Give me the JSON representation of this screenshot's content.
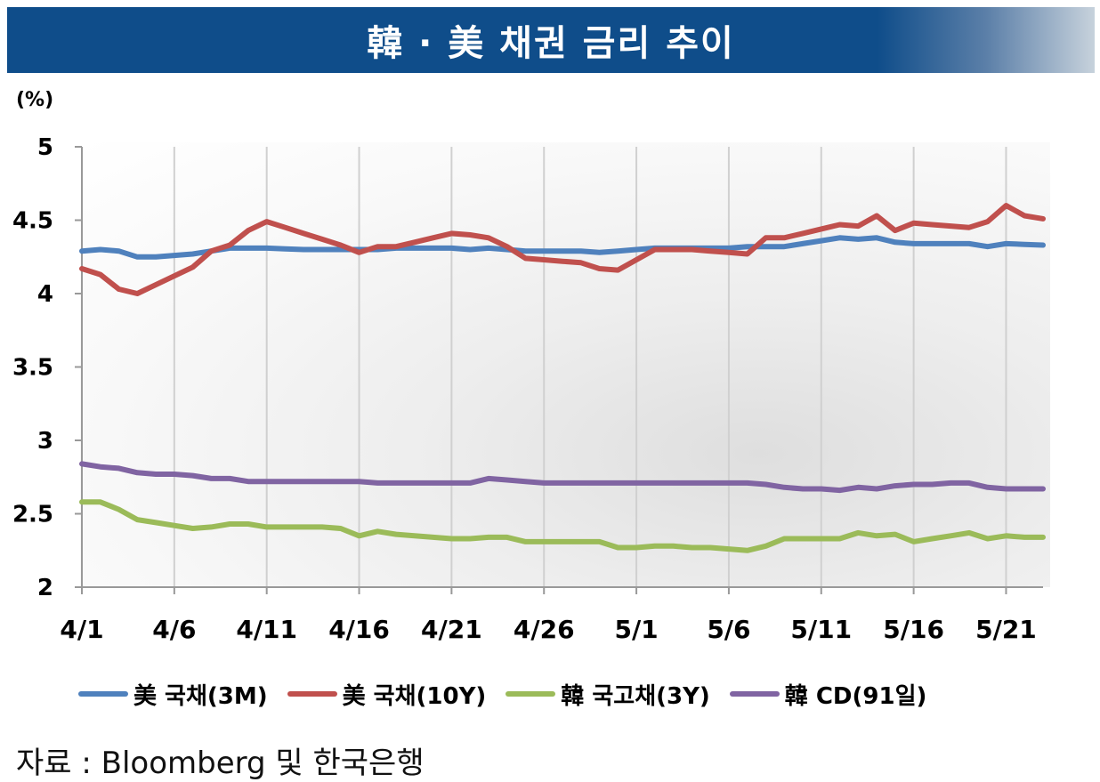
{
  "header": {
    "title": "韓 · 美 채권 금리 추이"
  },
  "unit_label": "(%)",
  "source": "자료 : Bloomberg 및 한국은행",
  "chart_data": {
    "type": "line",
    "title": "韓 · 美 채권 금리 추이",
    "ylabel": "(%)",
    "xlabel": "",
    "ylim": [
      2,
      5
    ],
    "yticks": [
      "5",
      "4.5",
      "4",
      "3.5",
      "3",
      "2.5",
      "2"
    ],
    "x_tick_labels": [
      "4/1",
      "4/6",
      "4/11",
      "4/16",
      "4/21",
      "4/26",
      "5/1",
      "5/6",
      "5/11",
      "5/16",
      "5/21"
    ],
    "x_tick_days": [
      1,
      6,
      11,
      16,
      21,
      26,
      31,
      36,
      41,
      46,
      51
    ],
    "x_range_days": [
      1,
      53
    ],
    "grid": "vertical",
    "legend_position": "bottom",
    "series": [
      {
        "name": "美 국채(3M)",
        "color": "#4f81bd",
        "x": [
          1,
          2,
          3,
          4,
          5,
          6,
          7,
          8,
          9,
          10,
          11,
          12,
          13,
          14,
          15,
          16,
          17,
          18,
          19,
          20,
          21,
          22,
          23,
          24,
          25,
          26,
          27,
          28,
          29,
          30,
          31,
          32,
          33,
          34,
          35,
          36,
          37,
          38,
          39,
          40,
          41,
          42,
          43,
          44,
          45,
          46,
          47,
          48,
          49,
          50,
          51,
          52,
          53
        ],
        "values": [
          4.29,
          4.3,
          4.29,
          4.25,
          4.25,
          4.26,
          4.27,
          4.29,
          4.31,
          4.31,
          4.31,
          4.305,
          4.3,
          4.3,
          4.3,
          4.3,
          4.3,
          4.31,
          4.31,
          4.31,
          4.31,
          4.3,
          4.31,
          4.3,
          4.29,
          4.29,
          4.29,
          4.29,
          4.28,
          4.29,
          4.3,
          4.31,
          4.31,
          4.31,
          4.31,
          4.31,
          4.32,
          4.32,
          4.32,
          4.34,
          4.36,
          4.38,
          4.37,
          4.38,
          4.35,
          4.34,
          4.34,
          4.34,
          4.34,
          4.32,
          4.34,
          4.335,
          4.33
        ]
      },
      {
        "name": "美 국채(10Y)",
        "color": "#c0504d",
        "x": [
          1,
          2,
          3,
          4,
          5,
          6,
          7,
          8,
          9,
          10,
          11,
          12,
          13,
          14,
          15,
          16,
          17,
          18,
          19,
          20,
          21,
          22,
          23,
          24,
          25,
          26,
          27,
          28,
          29,
          30,
          31,
          32,
          33,
          34,
          35,
          36,
          37,
          38,
          39,
          40,
          41,
          42,
          43,
          44,
          45,
          46,
          47,
          48,
          49,
          50,
          51,
          52,
          53
        ],
        "values": [
          4.17,
          4.13,
          4.03,
          4.0,
          4.06,
          4.12,
          4.18,
          4.29,
          4.33,
          4.43,
          4.49,
          4.45,
          4.41,
          4.37,
          4.33,
          4.28,
          4.32,
          4.32,
          4.35,
          4.38,
          4.41,
          4.4,
          4.38,
          4.32,
          4.24,
          4.23,
          4.22,
          4.21,
          4.17,
          4.16,
          4.23,
          4.3,
          4.3,
          4.3,
          4.29,
          4.28,
          4.27,
          4.38,
          4.38,
          4.41,
          4.44,
          4.47,
          4.46,
          4.53,
          4.43,
          4.48,
          4.47,
          4.46,
          4.45,
          4.49,
          4.6,
          4.53,
          4.51
        ]
      },
      {
        "name": "韓 국고채(3Y)",
        "color": "#9bbb59",
        "x": [
          1,
          2,
          3,
          4,
          5,
          6,
          7,
          8,
          9,
          10,
          11,
          12,
          13,
          14,
          15,
          16,
          17,
          18,
          19,
          20,
          21,
          22,
          23,
          24,
          25,
          26,
          27,
          28,
          29,
          30,
          31,
          32,
          33,
          34,
          35,
          36,
          37,
          38,
          39,
          40,
          41,
          42,
          43,
          44,
          45,
          46,
          47,
          48,
          49,
          50,
          51,
          52,
          53
        ],
        "values": [
          2.58,
          2.58,
          2.53,
          2.46,
          2.44,
          2.42,
          2.4,
          2.41,
          2.43,
          2.43,
          2.41,
          2.41,
          2.41,
          2.41,
          2.4,
          2.35,
          2.38,
          2.36,
          2.35,
          2.34,
          2.33,
          2.33,
          2.34,
          2.34,
          2.31,
          2.31,
          2.31,
          2.31,
          2.31,
          2.27,
          2.27,
          2.28,
          2.28,
          2.27,
          2.27,
          2.26,
          2.25,
          2.28,
          2.33,
          2.33,
          2.33,
          2.33,
          2.37,
          2.35,
          2.36,
          2.31,
          2.33,
          2.35,
          2.37,
          2.33,
          2.35,
          2.34,
          2.34
        ]
      },
      {
        "name": "韓 CD(91일)",
        "color": "#8064a2",
        "x": [
          1,
          2,
          3,
          4,
          5,
          6,
          7,
          8,
          9,
          10,
          11,
          12,
          13,
          14,
          15,
          16,
          17,
          18,
          19,
          20,
          21,
          22,
          23,
          24,
          25,
          26,
          27,
          28,
          29,
          30,
          31,
          32,
          33,
          34,
          35,
          36,
          37,
          38,
          39,
          40,
          41,
          42,
          43,
          44,
          45,
          46,
          47,
          48,
          49,
          50,
          51,
          52,
          53
        ],
        "values": [
          2.84,
          2.82,
          2.81,
          2.78,
          2.77,
          2.77,
          2.76,
          2.74,
          2.74,
          2.72,
          2.72,
          2.72,
          2.72,
          2.72,
          2.72,
          2.72,
          2.71,
          2.71,
          2.71,
          2.71,
          2.71,
          2.71,
          2.74,
          2.73,
          2.72,
          2.71,
          2.71,
          2.71,
          2.71,
          2.71,
          2.71,
          2.71,
          2.71,
          2.71,
          2.71,
          2.71,
          2.71,
          2.7,
          2.68,
          2.67,
          2.67,
          2.66,
          2.68,
          2.67,
          2.69,
          2.7,
          2.7,
          2.71,
          2.71,
          2.68,
          2.67,
          2.67,
          2.67
        ]
      }
    ]
  }
}
